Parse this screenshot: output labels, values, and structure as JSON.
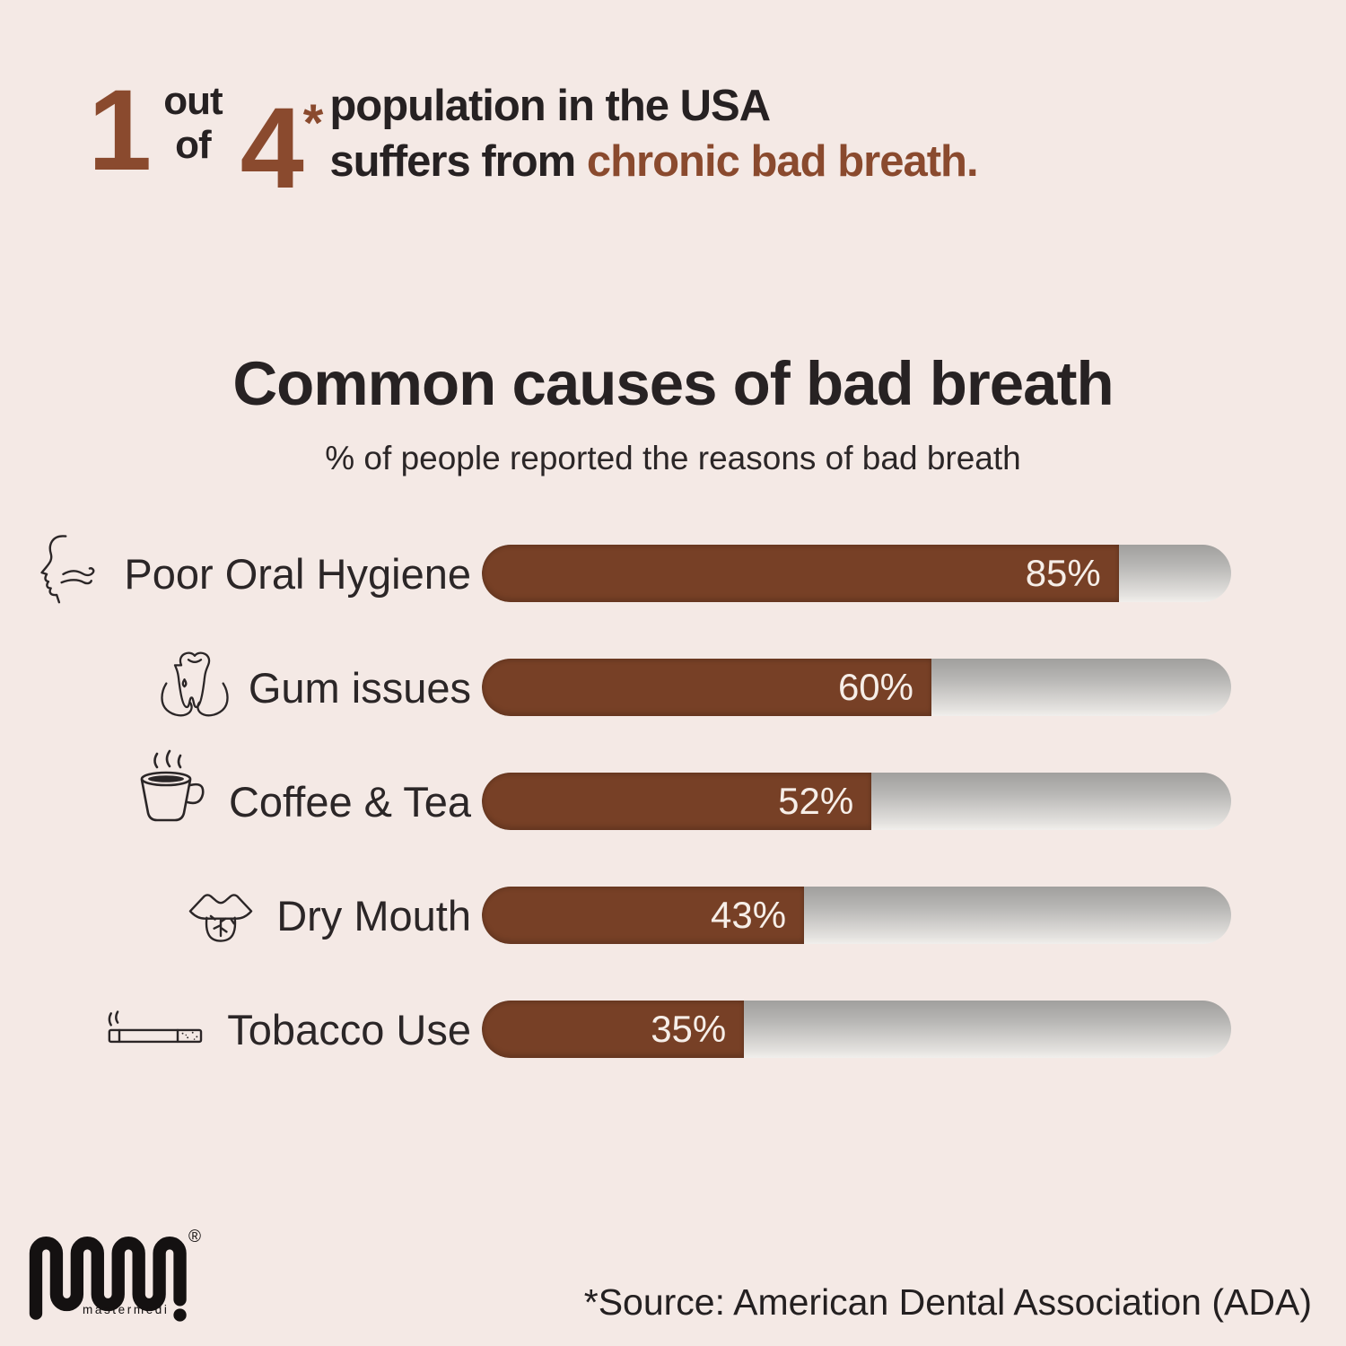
{
  "page": {
    "background_color": "#f4e9e5",
    "text_color": "#262122",
    "accent_color": "#8a4a2e"
  },
  "header": {
    "stat_numerator": "1",
    "stat_out": "out",
    "stat_of": "of",
    "stat_denominator": "4",
    "stat_asterisk": "*",
    "line1": "population in the USA",
    "line2_prefix": "suffers from ",
    "line2_highlight": "chronic bad breath."
  },
  "chart_data": {
    "type": "bar",
    "orientation": "horizontal",
    "title": "Common causes of bad breath",
    "subtitle": "% of people reported the reasons of bad breath",
    "categories": [
      "Poor Oral Hygiene",
      "Gum issues",
      "Coffee & Tea",
      "Dry Mouth",
      "Tobacco Use"
    ],
    "values": [
      85,
      60,
      52,
      43,
      35
    ],
    "value_labels": [
      "85%",
      "60%",
      "52%",
      "43%",
      "35%"
    ],
    "icons": [
      "breath-face-icon",
      "tooth-gum-icon",
      "coffee-cup-icon",
      "dry-mouth-tongue-icon",
      "cigarette-icon"
    ],
    "xlim": [
      0,
      100
    ],
    "grid": false,
    "legend": false,
    "bar_color": "#774026",
    "track_gradient_top": "#a09f9d",
    "track_gradient_bottom": "#f1efec",
    "value_text_color": "#f6eee8"
  },
  "footer": {
    "brand": "mastermedi",
    "registered_mark": "®",
    "source": "*Source: American Dental Association (ADA)"
  }
}
